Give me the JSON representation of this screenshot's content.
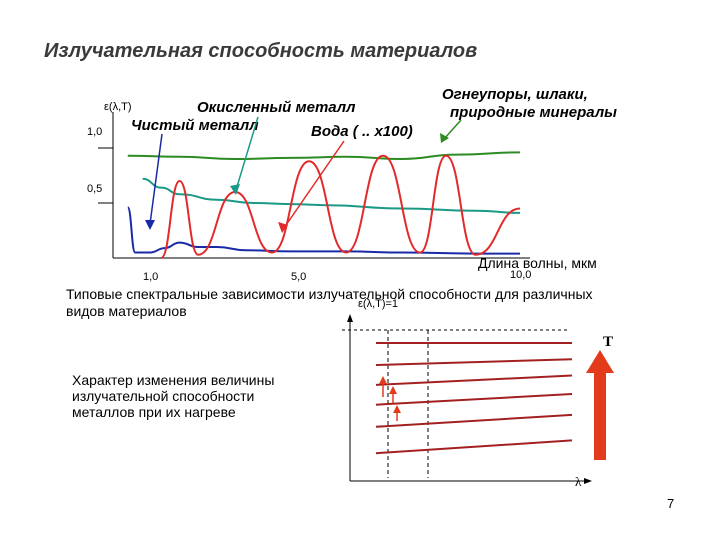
{
  "slide": {
    "title": "Излучательная способность материалов",
    "page_number": "7",
    "caption_line1": "Типовые спектральные зависимости излучательной способности для различных",
    "caption_line2": "видов материалов",
    "note_line1": "Характер изменения величины",
    "note_line2": "излучательной способности",
    "note_line3": "металлов при их нагреве"
  },
  "chart_data": [
    {
      "type": "line",
      "ylabel": "ε(λ,T)",
      "xlabel": "Длина волны, мкм",
      "x_ticks": [
        "1,0",
        "5,0",
        "10,0"
      ],
      "y_ticks": [
        "1,0",
        "0,5"
      ],
      "ylim": [
        0,
        1.1
      ],
      "series": [
        {
          "name": "Окисленный металл",
          "color": "#1a9a86",
          "points": [
            [
              1.0,
              0.72
            ],
            [
              1.5,
              0.64
            ],
            [
              2.0,
              0.58
            ],
            [
              3.0,
              0.53
            ],
            [
              4.0,
              0.5
            ],
            [
              5.0,
              0.49
            ],
            [
              6.0,
              0.48
            ],
            [
              8.0,
              0.45
            ],
            [
              10.0,
              0.43
            ],
            [
              11.2,
              0.41
            ]
          ]
        },
        {
          "name": "Чистый металл",
          "color": "#1a2aa6",
          "points": [
            [
              0.6,
              0.46
            ],
            [
              0.8,
              0.05
            ],
            [
              1.2,
              0.05
            ],
            [
              1.6,
              0.09
            ],
            [
              2.0,
              0.14
            ],
            [
              2.5,
              0.1
            ],
            [
              3.0,
              0.1
            ],
            [
              3.8,
              0.07
            ],
            [
              5.0,
              0.06
            ],
            [
              6.5,
              0.06
            ],
            [
              8.0,
              0.05
            ],
            [
              10.0,
              0.04
            ],
            [
              11.2,
              0.04
            ]
          ]
        },
        {
          "name": "Огнеупоры, шлаки, природные минералы",
          "color": "#2e8b22",
          "points": [
            [
              0.6,
              0.93
            ],
            [
              2.0,
              0.92
            ],
            [
              3.5,
              0.9
            ],
            [
              5.0,
              0.91
            ],
            [
              6.5,
              0.92
            ],
            [
              8.0,
              0.9
            ],
            [
              9.5,
              0.94
            ],
            [
              11.2,
              0.96
            ]
          ]
        },
        {
          "name": "Вода ( .. x100)",
          "color": "#e22a2a",
          "points": [
            [
              1.5,
              0.0
            ],
            [
              2.0,
              0.7
            ],
            [
              2.5,
              0.03
            ],
            [
              3.5,
              0.6
            ],
            [
              4.5,
              0.05
            ],
            [
              5.5,
              0.88
            ],
            [
              6.5,
              0.05
            ],
            [
              7.5,
              0.93
            ],
            [
              8.5,
              0.05
            ],
            [
              9.2,
              0.93
            ],
            [
              10.0,
              0.03
            ],
            [
              11.2,
              0.45
            ]
          ]
        }
      ],
      "annotations": [
        "Окисленный металл",
        "Чистый металл",
        "Вода ( .. x100)",
        "Огнеупоры, шлаки, природные минералы"
      ]
    },
    {
      "type": "line",
      "ylabel": "ε(λ,T)=1",
      "xlabel": "λ",
      "arrow_label": "T",
      "description_lines": 6,
      "series": [
        {
          "start": 1.0,
          "end": 1.0
        },
        {
          "start": 0.9,
          "end": 0.86
        },
        {
          "start": 0.81,
          "end": 0.72
        },
        {
          "start": 0.72,
          "end": 0.56
        },
        {
          "start": 0.62,
          "end": 0.38
        },
        {
          "start": 0.5,
          "end": 0.16
        }
      ],
      "line_color": "#a32020",
      "arrow_color": "#e23a1a"
    }
  ]
}
